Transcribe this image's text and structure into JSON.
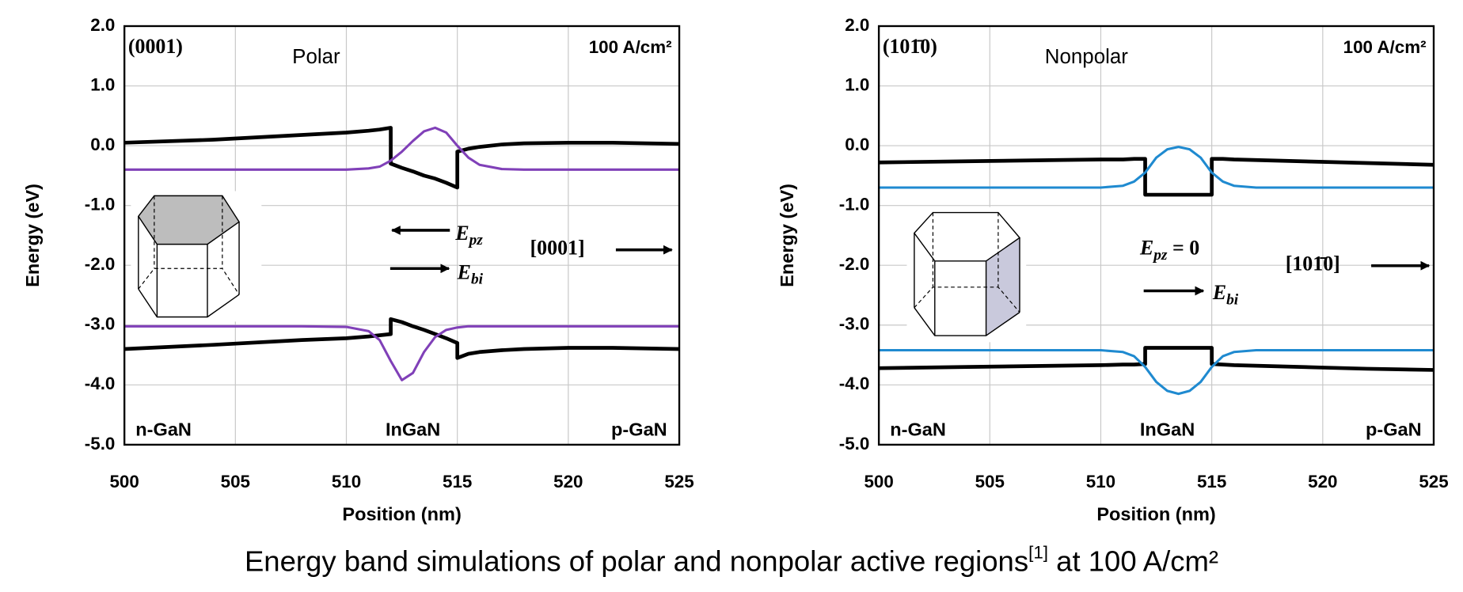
{
  "caption": [
    "Energy band simulations of polar and nonpolar active regions",
    "[1]",
    " at 100 A/cm²"
  ],
  "chart_data": [
    {
      "type": "line",
      "xlabel": "Position (nm)",
      "ylabel": "Energy (eV)",
      "xlim": [
        500,
        525
      ],
      "ylim": [
        -5,
        2
      ],
      "xticks": [
        500,
        505,
        510,
        515,
        520,
        525
      ],
      "yticks": [
        {
          "value": 2,
          "label": "2.0"
        },
        {
          "value": 1,
          "label": "1.0"
        },
        {
          "value": 0,
          "label": "0.0"
        },
        {
          "value": -1,
          "label": "-1.0"
        },
        {
          "value": -2,
          "label": "-2.0"
        },
        {
          "value": -3,
          "label": "-3.0"
        },
        {
          "value": -4,
          "label": "-4.0"
        },
        {
          "value": -5,
          "label": "-5.0"
        }
      ],
      "grid": true,
      "x": [
        500,
        504,
        508,
        510,
        511,
        511.5,
        512,
        512,
        512.5,
        513,
        513.5,
        514,
        514.5,
        515,
        515,
        515.5,
        516,
        517,
        518,
        520,
        522,
        525
      ],
      "series": [
        {
          "color": "#000000",
          "values": [
            0.05,
            0.1,
            0.18,
            0.22,
            0.25,
            0.27,
            0.3,
            -0.3,
            -0.37,
            -0.43,
            -0.5,
            -0.55,
            -0.62,
            -0.7,
            -0.1,
            -0.05,
            -0.02,
            0.02,
            0.04,
            0.05,
            0.05,
            0.03
          ]
        },
        {
          "color": "#8040b8",
          "values": [
            -0.4,
            -0.4,
            -0.4,
            -0.4,
            -0.38,
            -0.35,
            -0.25,
            -0.25,
            -0.1,
            0.08,
            0.24,
            0.3,
            0.22,
            0,
            0,
            -0.2,
            -0.32,
            -0.39,
            -0.4,
            -0.4,
            -0.4,
            -0.4
          ]
        },
        {
          "color": "#000000",
          "values": [
            -3.4,
            -3.33,
            -3.25,
            -3.22,
            -3.19,
            -3.17,
            -3.15,
            -2.9,
            -2.95,
            -3.02,
            -3.08,
            -3.15,
            -3.22,
            -3.3,
            -3.55,
            -3.48,
            -3.45,
            -3.42,
            -3.4,
            -3.38,
            -3.38,
            -3.4
          ]
        },
        {
          "color": "#8040b8",
          "values": [
            -3.02,
            -3.02,
            -3.02,
            -3.03,
            -3.1,
            -3.25,
            -3.6,
            -3.6,
            -3.92,
            -3.8,
            -3.45,
            -3.2,
            -3.08,
            -3.04,
            -3.04,
            -3.02,
            -3.02,
            -3.02,
            -3.02,
            -3.02,
            -3.02,
            -3.02
          ]
        }
      ],
      "annotations": {
        "orientation": "(0001)",
        "label": "Polar",
        "current": "100 A/cm²",
        "regions": [
          "n-GaN",
          "InGaN",
          "p-GaN"
        ],
        "e_pz": [
          "E",
          "pz"
        ],
        "e_bi": [
          "E",
          "bi"
        ],
        "direction": "[0001]"
      }
    },
    {
      "type": "line",
      "xlabel": "Position (nm)",
      "ylabel": "Energy (eV)",
      "xlim": [
        500,
        525
      ],
      "ylim": [
        -5,
        2
      ],
      "xticks": [
        500,
        505,
        510,
        515,
        520,
        525
      ],
      "yticks": [
        {
          "value": 2,
          "label": "2.0"
        },
        {
          "value": 1,
          "label": "1.0"
        },
        {
          "value": 0,
          "label": "0.0"
        },
        {
          "value": -1,
          "label": "-1.0"
        },
        {
          "value": -2,
          "label": "-2.0"
        },
        {
          "value": -3,
          "label": "-3.0"
        },
        {
          "value": -4,
          "label": "-4.0"
        },
        {
          "value": -5,
          "label": "-5.0"
        }
      ],
      "grid": true,
      "x": [
        500,
        504,
        508,
        510,
        511,
        511.5,
        512,
        512,
        512.5,
        513,
        513.5,
        514,
        514.5,
        515,
        515,
        515.5,
        516,
        517,
        518,
        520,
        522,
        525
      ],
      "series": [
        {
          "color": "#000000",
          "values": [
            -0.28,
            -0.26,
            -0.24,
            -0.23,
            -0.23,
            -0.22,
            -0.22,
            -0.82,
            -0.82,
            -0.82,
            -0.82,
            -0.82,
            -0.82,
            -0.82,
            -0.22,
            -0.22,
            -0.23,
            -0.24,
            -0.25,
            -0.27,
            -0.29,
            -0.32
          ]
        },
        {
          "color": "#1f8ad0",
          "values": [
            -0.7,
            -0.7,
            -0.7,
            -0.7,
            -0.67,
            -0.6,
            -0.45,
            -0.45,
            -0.2,
            -0.06,
            -0.02,
            -0.06,
            -0.2,
            -0.45,
            -0.45,
            -0.6,
            -0.67,
            -0.7,
            -0.7,
            -0.7,
            -0.7,
            -0.7
          ]
        },
        {
          "color": "#000000",
          "values": [
            -3.72,
            -3.7,
            -3.68,
            -3.67,
            -3.66,
            -3.66,
            -3.65,
            -3.38,
            -3.38,
            -3.38,
            -3.38,
            -3.38,
            -3.38,
            -3.38,
            -3.65,
            -3.66,
            -3.67,
            -3.68,
            -3.69,
            -3.71,
            -3.73,
            -3.75
          ]
        },
        {
          "color": "#1f8ad0",
          "values": [
            -3.42,
            -3.42,
            -3.42,
            -3.42,
            -3.45,
            -3.52,
            -3.7,
            -3.7,
            -3.95,
            -4.1,
            -4.15,
            -4.1,
            -3.95,
            -3.7,
            -3.7,
            -3.52,
            -3.45,
            -3.42,
            -3.42,
            -3.42,
            -3.42,
            -3.42
          ]
        }
      ],
      "annotations": {
        "orientation": "(101̄0)",
        "label": "Nonpolar",
        "current": "100 A/cm²",
        "regions": [
          "n-GaN",
          "InGaN",
          "p-GaN"
        ],
        "e_pz": [
          "E",
          "pz",
          " = 0"
        ],
        "e_bi": [
          "E",
          "bi"
        ],
        "direction": "[101̄0]"
      }
    }
  ]
}
